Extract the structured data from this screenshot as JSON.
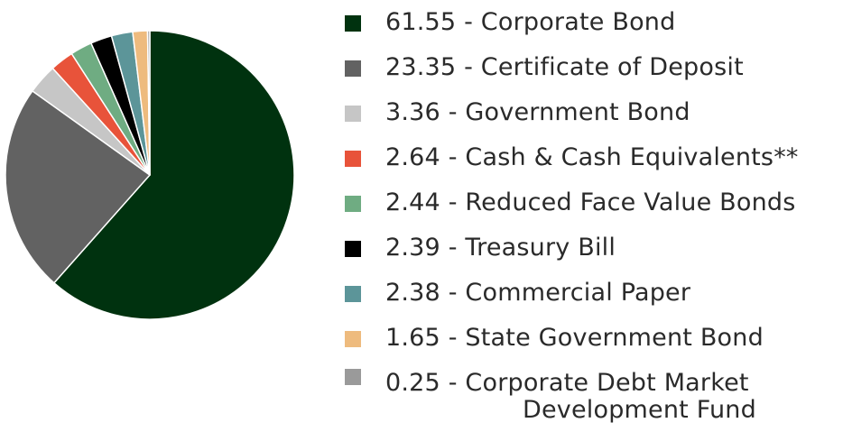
{
  "colors": {
    "corporate_bond": "#00320f",
    "certificate_of_deposit": "#626262",
    "government_bond": "#c6c6c6",
    "cash_equivalents": "#e8533a",
    "reduced_face_value_bonds": "#6fac82",
    "treasury_bill": "#000000",
    "commercial_paper": "#5c9599",
    "state_government_bond": "#eebb7e",
    "corporate_debt_market": "#9a9a9a"
  },
  "chart_data": {
    "type": "pie",
    "title": "",
    "categories": [
      "Corporate Bond",
      "Certificate of Deposit",
      "Government Bond",
      "Cash & Cash Equivalents**",
      "Reduced Face Value Bonds",
      "Treasury Bill",
      "Commercial Paper",
      "State Government Bond",
      "Corporate Debt Market Development Fund"
    ],
    "values": [
      61.55,
      23.35,
      3.36,
      2.64,
      2.44,
      2.39,
      2.38,
      1.65,
      0.25
    ],
    "colors": [
      "#00320f",
      "#626262",
      "#c6c6c6",
      "#e8533a",
      "#6fac82",
      "#000000",
      "#5c9599",
      "#eebb7e",
      "#9a9a9a"
    ],
    "legend_position": "right"
  },
  "legend": {
    "items": [
      {
        "text": "61.55 - Corporate Bond"
      },
      {
        "text": "23.35 - Certificate of Deposit"
      },
      {
        "text": "3.36 - Government Bond"
      },
      {
        "text": "2.64 - Cash & Cash Equivalents**"
      },
      {
        "text": "2.44 - Reduced Face Value Bonds"
      },
      {
        "text": "2.39 - Treasury Bill"
      },
      {
        "text": "2.38 - Commercial Paper"
      },
      {
        "text": "1.65 - State Government Bond"
      },
      {
        "text": "0.25 - Corporate Debt Market",
        "text_line2": "Development Fund"
      }
    ]
  }
}
